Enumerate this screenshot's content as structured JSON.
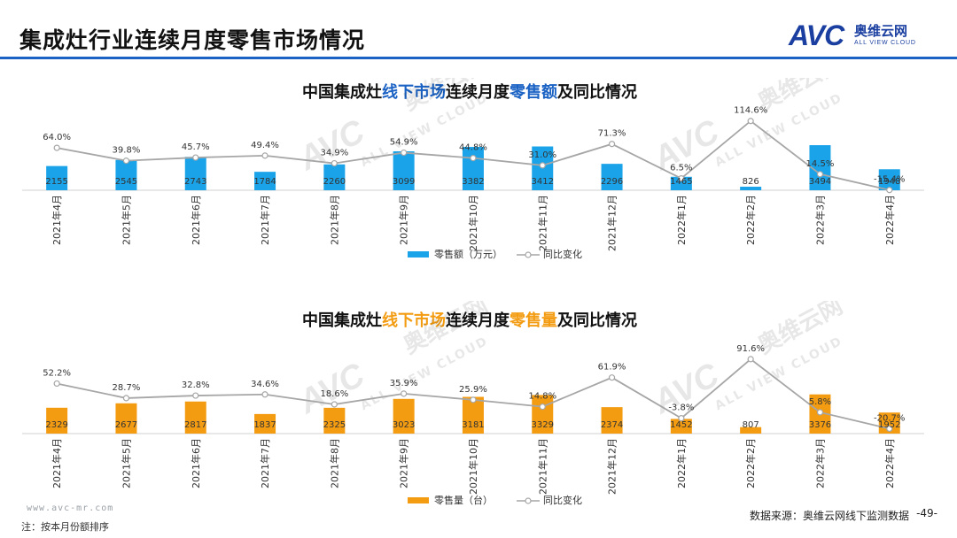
{
  "page": {
    "title": "集成灶行业连续月度零售市场情况",
    "logo_cn": "奥维云网",
    "logo_en": "ALL VIEW CLOUD",
    "logo_mark": "AVC",
    "watermark_cn": "奥维云网",
    "watermark_en": "ALL VIEW CLOUD",
    "footer_url": "www.avc-mr.com",
    "footer_note": "注：按本月份额排序",
    "source": "数据来源：奥维云网线下监测数据",
    "page_number": "-49-"
  },
  "colors": {
    "blue_bar": "#1aa3e8",
    "orange_bar": "#f39c12",
    "line": "#a6a6a6",
    "title_blue": "#1a62c4",
    "title_orange": "#f39c12",
    "brand": "#1a3fa0"
  },
  "chart_data": [
    {
      "type": "bar+line",
      "title_parts": [
        "中国集成灶",
        "线下市场",
        "连续月度",
        "零售额",
        "及同比情况"
      ],
      "categories": [
        "2021年4月",
        "2021年5月",
        "2021年6月",
        "2021年7月",
        "2021年8月",
        "2021年9月",
        "2021年10月",
        "2021年11月",
        "2021年12月",
        "2022年1月",
        "2022年2月",
        "2022年3月",
        "2022年4月"
      ],
      "series": [
        {
          "name": "零售额（万元）",
          "kind": "bar",
          "values": [
            2155,
            2545,
            2743,
            1784,
            2260,
            3099,
            3382,
            3412,
            2296,
            1465,
            826,
            3494,
            1948
          ]
        },
        {
          "name": "同比变化",
          "kind": "line",
          "values": [
            64.0,
            39.8,
            45.7,
            49.4,
            34.9,
            54.9,
            44.8,
            31.0,
            71.3,
            6.5,
            114.6,
            14.5,
            -15.4
          ],
          "labels": [
            "64.0%",
            "39.8%",
            "45.7%",
            "49.4%",
            "34.9%",
            "54.9%",
            "44.8%",
            "31.0%",
            "71.3%",
            "6.5%",
            "114.6%",
            "14.5%",
            "-15.4%"
          ]
        }
      ],
      "legend": {
        "position": "bottom-center"
      }
    },
    {
      "type": "bar+line",
      "title_parts": [
        "中国集成灶",
        "线下市场",
        "连续月度",
        "零售量",
        "及同比情况"
      ],
      "categories": [
        "2021年4月",
        "2021年5月",
        "2021年6月",
        "2021年7月",
        "2021年8月",
        "2021年9月",
        "2021年10月",
        "2021年11月",
        "2021年12月",
        "2022年1月",
        "2022年2月",
        "2022年3月",
        "2022年4月"
      ],
      "series": [
        {
          "name": "零售量（台）",
          "kind": "bar",
          "values": [
            2329,
            2677,
            2817,
            1837,
            2325,
            3023,
            3181,
            3329,
            2374,
            1452,
            807,
            3376,
            1952
          ]
        },
        {
          "name": "同比变化",
          "kind": "line",
          "values": [
            52.2,
            28.7,
            32.8,
            34.6,
            18.6,
            35.9,
            25.9,
            14.8,
            61.9,
            -3.8,
            91.6,
            5.8,
            -20.7
          ],
          "labels": [
            "52.2%",
            "28.7%",
            "32.8%",
            "34.6%",
            "18.6%",
            "35.9%",
            "25.9%",
            "14.8%",
            "61.9%",
            "-3.8%",
            "91.6%",
            "5.8%",
            "-20.7%"
          ]
        }
      ],
      "legend": {
        "position": "bottom-center"
      }
    }
  ]
}
